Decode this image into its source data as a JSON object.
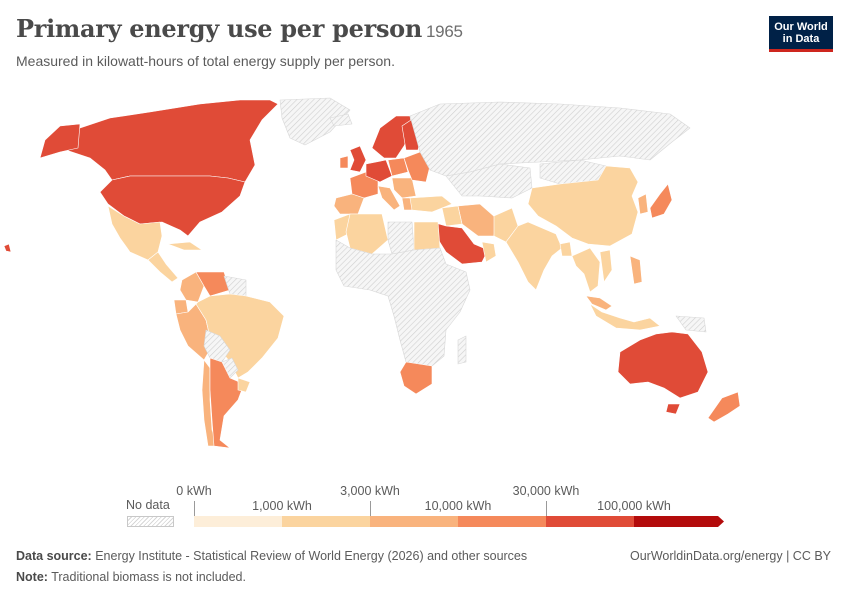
{
  "header": {
    "title": "Primary energy use per person",
    "year": "1965",
    "subtitle": "Measured in kilowatt-hours of total energy supply per person."
  },
  "logo": {
    "line1": "Our World",
    "line2": "in Data"
  },
  "legend": {
    "no_data_label": "No data",
    "tick_labels_top": [
      "0 kWh",
      "3,000 kWh",
      "30,000 kWh"
    ],
    "tick_labels_bottom": [
      "1,000 kWh",
      "10,000 kWh",
      "100,000 kWh"
    ],
    "colors": [
      "#fdeed9",
      "#fbd49f",
      "#f9b37d",
      "#f5895b",
      "#e04b37",
      "#b30b0b"
    ]
  },
  "footer": {
    "source_label": "Data source:",
    "source_text": "Energy Institute - Statistical Review of World Energy (2026) and other sources",
    "note_label": "Note:",
    "note_text": "Traditional biomass is not included.",
    "url": "OurWorldinData.org/energy | CC BY"
  },
  "regions": [
    {
      "name": "Canada",
      "color": "#e04b37"
    },
    {
      "name": "United States",
      "color": "#e04b37"
    },
    {
      "name": "Alaska",
      "color": "#e04b37"
    },
    {
      "name": "Greenland",
      "color": "nodata"
    },
    {
      "name": "Mexico",
      "color": "#fbd49f"
    },
    {
      "name": "Central America",
      "color": "#fbd49f"
    },
    {
      "name": "Cuba",
      "color": "#fbd49f"
    },
    {
      "name": "Colombia",
      "color": "#f9b37d"
    },
    {
      "name": "Venezuela",
      "color": "#f5895b"
    },
    {
      "name": "Guianas",
      "color": "nodata"
    },
    {
      "name": "Ecuador",
      "color": "#f9b37d"
    },
    {
      "name": "Peru",
      "color": "#f9b37d"
    },
    {
      "name": "Brazil",
      "color": "#fbd49f"
    },
    {
      "name": "Bolivia",
      "color": "nodata"
    },
    {
      "name": "Paraguay",
      "color": "nodata"
    },
    {
      "name": "Chile",
      "color": "#f9b37d"
    },
    {
      "name": "Argentina",
      "color": "#f5895b"
    },
    {
      "name": "Uruguay",
      "color": "#fbd49f"
    },
    {
      "name": "Iceland",
      "color": "nodata"
    },
    {
      "name": "Scandinavia",
      "color": "#e04b37"
    },
    {
      "name": "Finland",
      "color": "#e04b37"
    },
    {
      "name": "United Kingdom",
      "color": "#e04b37"
    },
    {
      "name": "Ireland",
      "color": "#f5895b"
    },
    {
      "name": "France",
      "color": "#f5895b"
    },
    {
      "name": "Iberia",
      "color": "#f9b37d"
    },
    {
      "name": "Germany",
      "color": "#e04b37"
    },
    {
      "name": "Poland",
      "color": "#f5895b"
    },
    {
      "name": "Italy",
      "color": "#f9b37d"
    },
    {
      "name": "Balkans",
      "color": "#f9b37d"
    },
    {
      "name": "Eastern Europe",
      "color": "#f5895b"
    },
    {
      "name": "Greece",
      "color": "#f9b37d"
    },
    {
      "name": "Russia",
      "color": "nodata"
    },
    {
      "name": "Central Asia",
      "color": "nodata"
    },
    {
      "name": "Mongolia",
      "color": "nodata"
    },
    {
      "name": "Turkey",
      "color": "#fbd49f"
    },
    {
      "name": "Iran",
      "color": "#f9b37d"
    },
    {
      "name": "Iraq",
      "color": "#fbd49f"
    },
    {
      "name": "Saudi Arabia",
      "color": "#e04b37"
    },
    {
      "name": "Arabian Gulf",
      "color": "#fbd49f"
    },
    {
      "name": "Pakistan",
      "color": "#fbd49f"
    },
    {
      "name": "India",
      "color": "#fbd49f"
    },
    {
      "name": "Bangladesh",
      "color": "#fbd49f"
    },
    {
      "name": "China",
      "color": "#fbd49f"
    },
    {
      "name": "Korea",
      "color": "#f9b37d"
    },
    {
      "name": "Japan",
      "color": "#f5895b"
    },
    {
      "name": "Southeast Asia",
      "color": "#fbd49f"
    },
    {
      "name": "Vietnam",
      "color": "#fbd49f"
    },
    {
      "name": "Philippines",
      "color": "#f9b37d"
    },
    {
      "name": "Malaysia",
      "color": "#f9b37d"
    },
    {
      "name": "Indonesia",
      "color": "#fbd49f"
    },
    {
      "name": "Papua New Guinea",
      "color": "nodata"
    },
    {
      "name": "Morocco",
      "color": "#fbd49f"
    },
    {
      "name": "Algeria",
      "color": "#fbd49f"
    },
    {
      "name": "Libya",
      "color": "nodata"
    },
    {
      "name": "Egypt",
      "color": "#fbd49f"
    },
    {
      "name": "Sub-Saharan Africa",
      "color": "nodata"
    },
    {
      "name": "South Africa",
      "color": "#f5895b"
    },
    {
      "name": "Madagascar",
      "color": "nodata"
    },
    {
      "name": "Australia",
      "color": "#e04b37"
    },
    {
      "name": "Tasmania",
      "color": "#e04b37"
    },
    {
      "name": "New Zealand",
      "color": "#f5895b"
    },
    {
      "name": "Hawaii",
      "color": "#e04b37"
    }
  ]
}
